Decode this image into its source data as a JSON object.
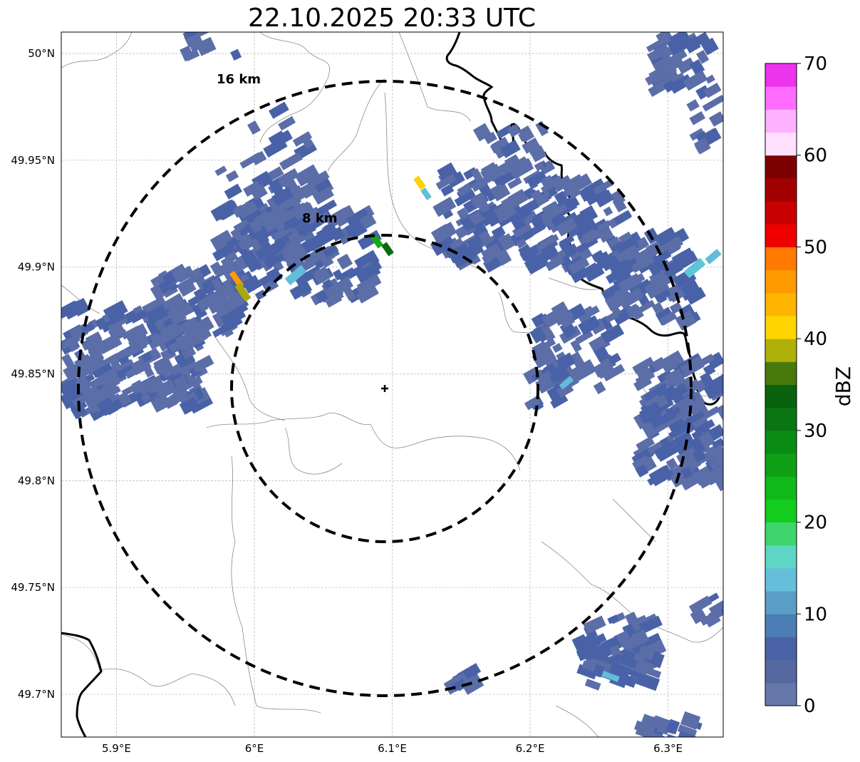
{
  "title": "22.10.2025 20:33 UTC",
  "map": {
    "lon_range": [
      5.86,
      6.34
    ],
    "lat_range": [
      49.68,
      50.01
    ],
    "lon_ticks": [
      {
        "value": 5.9,
        "label": "5.9°E"
      },
      {
        "value": 6.0,
        "label": "6°E"
      },
      {
        "value": 6.1,
        "label": "6.1°E"
      },
      {
        "value": 6.2,
        "label": "6.2°E"
      },
      {
        "value": 6.3,
        "label": "6.3°E"
      }
    ],
    "lat_ticks": [
      {
        "value": 50.0,
        "label": "50°N"
      },
      {
        "value": 49.95,
        "label": "49.95°N"
      },
      {
        "value": 49.9,
        "label": "49.9°N"
      },
      {
        "value": 49.85,
        "label": "49.85°N"
      },
      {
        "value": 49.8,
        "label": "49.8°N"
      },
      {
        "value": 49.75,
        "label": "49.75°N"
      },
      {
        "value": 49.7,
        "label": "49.7°N"
      }
    ],
    "radar_site": {
      "lon": 6.094,
      "lat": 49.843
    },
    "range_rings": [
      {
        "radius_km": 8,
        "label": "8 km"
      },
      {
        "radius_km": 16,
        "label": "16 km"
      }
    ],
    "grid": true
  },
  "colorbar": {
    "label": "dBZ",
    "ticks": [
      "0",
      "10",
      "20",
      "30",
      "40",
      "50",
      "60",
      "70"
    ],
    "min": 0,
    "max": 70,
    "step": 2.5,
    "colors": [
      "#6677aa",
      "#5569a0",
      "#4a63a6",
      "#4c7db4",
      "#5a9ec8",
      "#65bfdb",
      "#5fd6c4",
      "#3ed66c",
      "#14cc1e",
      "#10b81a",
      "#0fa016",
      "#0a8c14",
      "#0a7612",
      "#08620e",
      "#477a0a",
      "#b0b00a",
      "#ffd500",
      "#ffb400",
      "#ff9a00",
      "#ff7a00",
      "#ee0000",
      "#c80000",
      "#a20000",
      "#7d0000",
      "#ffe0ff",
      "#ffb2ff",
      "#ff6cff",
      "#ee33ee"
    ]
  },
  "echo_colors": {
    "light": "#5c6ea8",
    "medium": "#4962a7",
    "teal": "#5ec6d6",
    "cyan": "#63bcd9",
    "green": "#14a81a",
    "darkgreen": "#0b6a10",
    "olive": "#a8a80a",
    "orange": "#ff9c00",
    "yellow": "#ffd200"
  }
}
